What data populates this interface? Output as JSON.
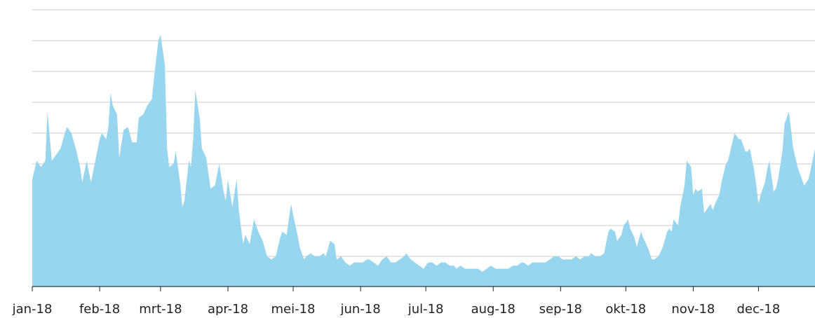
{
  "chart_data": {
    "type": "area",
    "color": "#98d5ee",
    "grid": true,
    "xlim": [
      0,
      360
    ],
    "xticks": [
      {
        "value": 0,
        "label": "jan-18"
      },
      {
        "value": 31,
        "label": "feb-18"
      },
      {
        "value": 59,
        "label": "mrt-18"
      },
      {
        "value": 90,
        "label": "apr-18"
      },
      {
        "value": 120,
        "label": "mei-18"
      },
      {
        "value": 151,
        "label": "jun-18"
      },
      {
        "value": 181,
        "label": "jul-18"
      },
      {
        "value": 212,
        "label": "aug-18"
      },
      {
        "value": 243,
        "label": "sep-18"
      },
      {
        "value": 273,
        "label": "okt-18"
      },
      {
        "value": 304,
        "label": "nov-18"
      },
      {
        "value": 334,
        "label": "dec-18"
      }
    ],
    "ylim": [
      0,
      9
    ],
    "yticks": [
      1,
      2,
      3,
      4,
      5,
      6,
      7,
      8,
      9
    ],
    "x": [
      0,
      2,
      4,
      6,
      7,
      9,
      11,
      13,
      15,
      16,
      18,
      20,
      22,
      23,
      25,
      27,
      29,
      31,
      32,
      34,
      35,
      36,
      37,
      39,
      40,
      42,
      44,
      46,
      48,
      49,
      51,
      53,
      55,
      56,
      58,
      59,
      61,
      62,
      63,
      65,
      66,
      68,
      69,
      70,
      72,
      73,
      74,
      75,
      77,
      78,
      80,
      82,
      84,
      86,
      88,
      89,
      90,
      92,
      94,
      95,
      97,
      98,
      100,
      102,
      104,
      106,
      108,
      110,
      112,
      114,
      115,
      117,
      119,
      121,
      122,
      123,
      125,
      126,
      128,
      130,
      132,
      134,
      135,
      137,
      139,
      140,
      142,
      144,
      146,
      148,
      150,
      152,
      154,
      155,
      157,
      159,
      161,
      163,
      165,
      167,
      169,
      171,
      172,
      174,
      176,
      178,
      180,
      182,
      184,
      186,
      188,
      190,
      192,
      194,
      195,
      197,
      199,
      201,
      203,
      205,
      207,
      209,
      211,
      213,
      215,
      217,
      219,
      221,
      223,
      225,
      226,
      228,
      230,
      232,
      234,
      236,
      238,
      240,
      242,
      244,
      246,
      248,
      250,
      252,
      254,
      256,
      257,
      259,
      261,
      263,
      265,
      266,
      268,
      269,
      271,
      272,
      274,
      275,
      277,
      278,
      280,
      281,
      283,
      285,
      286,
      288,
      290,
      292,
      293,
      294,
      295,
      297,
      298,
      300,
      301,
      303,
      304,
      305,
      306,
      308,
      309,
      310,
      312,
      313,
      314,
      316,
      317,
      319,
      320,
      322,
      323,
      325,
      326,
      328,
      329,
      330,
      332,
      333,
      334,
      335,
      337,
      338,
      339,
      341,
      342,
      343,
      345,
      346,
      347,
      348,
      350,
      351,
      352,
      354,
      355,
      357,
      358,
      360
    ],
    "values": [
      3.5,
      4.1,
      3.9,
      4.1,
      5.7,
      4.1,
      4.3,
      4.5,
      5.0,
      5.2,
      5.0,
      4.5,
      3.9,
      3.4,
      4.1,
      3.4,
      4.1,
      4.8,
      5.0,
      4.8,
      5.2,
      6.3,
      5.9,
      5.6,
      4.2,
      5.1,
      5.2,
      4.7,
      4.7,
      5.5,
      5.6,
      5.9,
      6.1,
      6.8,
      8.0,
      8.2,
      7.2,
      4.5,
      3.9,
      4.0,
      4.4,
      3.4,
      2.6,
      2.8,
      4.1,
      3.9,
      4.8,
      6.4,
      5.5,
      4.5,
      4.2,
      3.2,
      3.3,
      4.0,
      3.1,
      2.8,
      3.5,
      2.6,
      3.5,
      2.5,
      1.4,
      1.7,
      1.4,
      2.2,
      1.8,
      1.5,
      1.0,
      0.9,
      1.0,
      1.6,
      1.8,
      1.7,
      2.7,
      2.0,
      1.7,
      1.3,
      0.9,
      1.0,
      1.1,
      1.0,
      1.0,
      1.1,
      1.0,
      1.5,
      1.4,
      0.9,
      1.0,
      0.8,
      0.7,
      0.8,
      0.8,
      0.8,
      0.9,
      0.9,
      0.8,
      0.7,
      0.9,
      1.0,
      0.8,
      0.8,
      0.9,
      1.0,
      1.1,
      0.9,
      0.8,
      0.7,
      0.6,
      0.8,
      0.8,
      0.7,
      0.8,
      0.8,
      0.7,
      0.7,
      0.6,
      0.7,
      0.6,
      0.6,
      0.6,
      0.6,
      0.5,
      0.6,
      0.7,
      0.6,
      0.6,
      0.6,
      0.6,
      0.7,
      0.7,
      0.8,
      0.8,
      0.7,
      0.8,
      0.8,
      0.8,
      0.8,
      0.9,
      1.0,
      1.0,
      0.9,
      0.9,
      0.9,
      1.0,
      0.9,
      1.0,
      1.0,
      1.1,
      1.0,
      1.0,
      1.1,
      1.8,
      1.9,
      1.8,
      1.5,
      1.7,
      2.0,
      2.2,
      1.9,
      1.6,
      1.3,
      1.8,
      1.6,
      1.3,
      0.9,
      0.9,
      1.0,
      1.3,
      1.8,
      1.9,
      1.8,
      2.2,
      2.0,
      2.6,
      3.3,
      4.1,
      3.9,
      3.0,
      3.2,
      3.1,
      3.2,
      2.4,
      2.5,
      2.7,
      2.5,
      2.7,
      3.0,
      3.4,
      4.0,
      4.1,
      4.7,
      5.0,
      4.8,
      4.8,
      4.4,
      4.4,
      4.5,
      3.8,
      3.3,
      2.7,
      3.0,
      3.4,
      3.8,
      4.1,
      3.1,
      3.2,
      3.5,
      4.4,
      5.3,
      5.5,
      5.7,
      4.5,
      4.2,
      3.9,
      3.5,
      3.3,
      3.5,
      3.8,
      4.5
    ]
  }
}
